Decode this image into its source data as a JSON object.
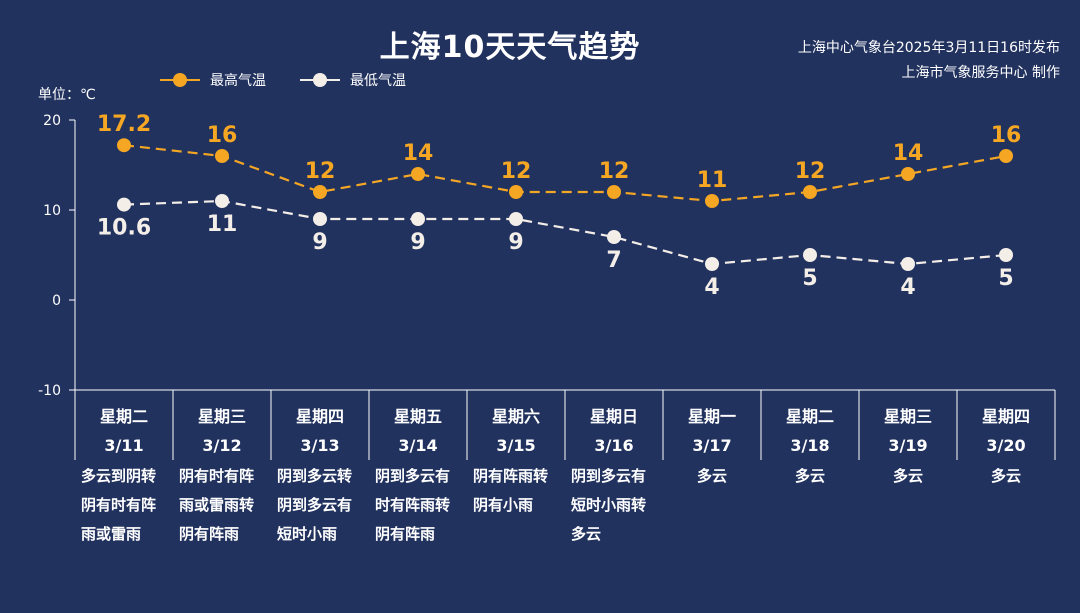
{
  "title": "上海10天天气趋势",
  "source_lines": [
    "上海中心气象台2025年3月11日16时发布",
    "上海市气象服务中心 制作"
  ],
  "unit_label": "单位：℃",
  "colors": {
    "background": "#22325f",
    "high": "#f5a623",
    "low": "#f4eee8",
    "axis": "#ffffff",
    "grid_box": "#ffffff"
  },
  "chart_data": {
    "type": "line",
    "title": "上海10天天气趋势",
    "ylabel": "单位：℃",
    "ylim": [
      -10,
      20
    ],
    "yticks": [
      20,
      10,
      0,
      -10
    ],
    "legend_position": "top-left",
    "grid": false,
    "categories": [
      "3/11",
      "3/12",
      "3/13",
      "3/14",
      "3/15",
      "3/16",
      "3/17",
      "3/18",
      "3/19",
      "3/20"
    ],
    "weekdays": [
      "星期二",
      "星期三",
      "星期四",
      "星期五",
      "星期六",
      "星期日",
      "星期一",
      "星期二",
      "星期三",
      "星期四"
    ],
    "series": [
      {
        "name": "最高气温",
        "color": "#f5a623",
        "values": [
          17.2,
          16,
          12,
          14,
          12,
          12,
          11,
          12,
          14,
          16
        ],
        "labels": [
          "17.2",
          "16",
          "12",
          "14",
          "12",
          "12",
          "11",
          "12",
          "14",
          "16"
        ]
      },
      {
        "name": "最低气温",
        "color": "#f4eee8",
        "values": [
          10.6,
          11,
          9,
          9,
          9,
          7,
          4,
          5,
          4,
          5
        ],
        "labels": [
          "10.6",
          "11",
          "9",
          "9",
          "9",
          "7",
          "4",
          "5",
          "4",
          "5"
        ]
      }
    ],
    "weather": [
      [
        "多云到阴转",
        "阴有时有阵",
        "雨或雷雨"
      ],
      [
        "阴有时有阵",
        "雨或雷雨转",
        "阴有阵雨"
      ],
      [
        "阴到多云转",
        "阴到多云有",
        "短时小雨"
      ],
      [
        "阴到多云有",
        "时有阵雨转",
        "阴有阵雨"
      ],
      [
        "阴有阵雨转",
        "阴有小雨"
      ],
      [
        "阴到多云有",
        "短时小雨转",
        "多云"
      ],
      [
        "多云"
      ],
      [
        "多云"
      ],
      [
        "多云"
      ],
      [
        "多云"
      ]
    ]
  }
}
